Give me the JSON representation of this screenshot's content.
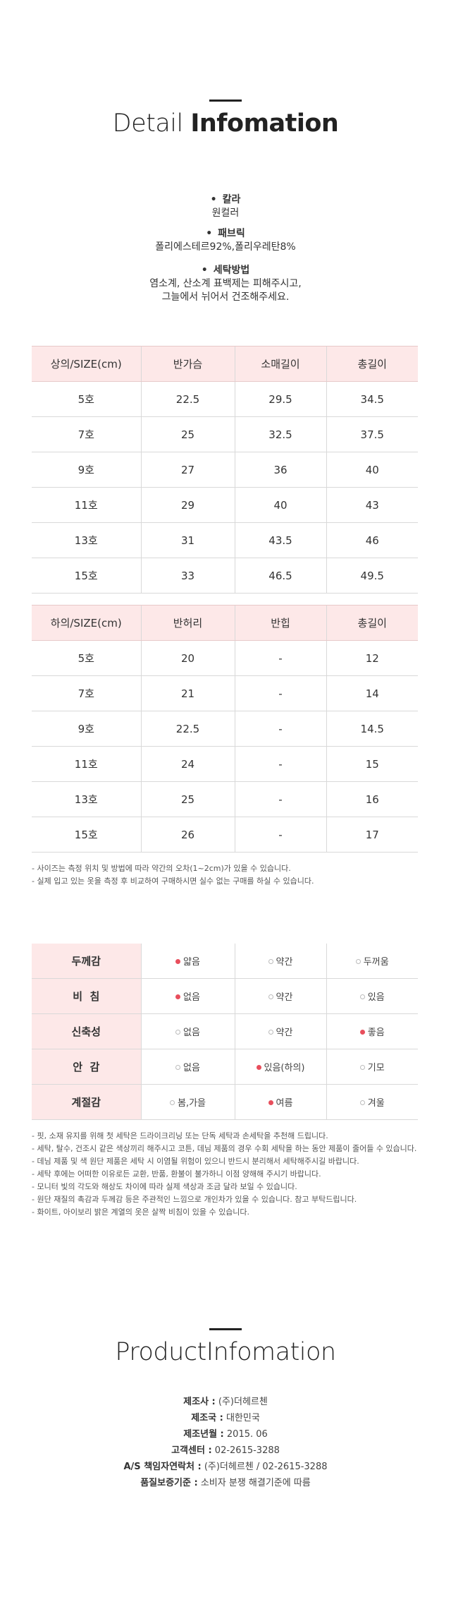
{
  "detail": {
    "title_light": "Detail ",
    "title_bold": "Infomation",
    "items": [
      {
        "head": "칼라",
        "body": [
          "원컬러"
        ]
      },
      {
        "head": "패브릭",
        "body": [
          "폴리에스테르92%,폴리우레탄8%"
        ]
      },
      {
        "head": "세탁방법",
        "body": [
          "염소계, 산소계 표백제는 피해주시고,",
          "그늘에서 뉘어서 건조해주세요."
        ]
      }
    ]
  },
  "top_table": {
    "headers": [
      "상의/SIZE(cm)",
      "반가슴",
      "소매길이",
      "총길이"
    ],
    "rows": [
      [
        "5호",
        "22.5",
        "29.5",
        "34.5"
      ],
      [
        "7호",
        "25",
        "32.5",
        "37.5"
      ],
      [
        "9호",
        "27",
        "36",
        "40"
      ],
      [
        "11호",
        "29",
        "40",
        "43"
      ],
      [
        "13호",
        "31",
        "43.5",
        "46"
      ],
      [
        "15호",
        "33",
        "46.5",
        "49.5"
      ]
    ]
  },
  "bottom_table": {
    "headers": [
      "하의/SIZE(cm)",
      "반허리",
      "반힙",
      "총길이"
    ],
    "rows": [
      [
        "5호",
        "20",
        "-",
        "12"
      ],
      [
        "7호",
        "21",
        "-",
        "14"
      ],
      [
        "9호",
        "22.5",
        "-",
        "14.5"
      ],
      [
        "11호",
        "24",
        "-",
        "15"
      ],
      [
        "13호",
        "25",
        "-",
        "16"
      ],
      [
        "15호",
        "26",
        "-",
        "17"
      ]
    ]
  },
  "size_notes": [
    "- 사이즈는 측정 위치 및 방법에 따라 약간의 오차(1~2cm)가 있을 수 있습니다.",
    "- 실제 입고 있는 옷을 측정 후 비교하여 구매하시면 실수 없는 구매를 하실 수 있습니다."
  ],
  "feel_table": {
    "rows": [
      {
        "label": "두께감",
        "options": [
          "얇음",
          "약간",
          "두꺼움"
        ],
        "selected": 0
      },
      {
        "label": "비  침",
        "options": [
          "없음",
          "약간",
          "있음"
        ],
        "selected": 0
      },
      {
        "label": "신축성",
        "options": [
          "없음",
          "약간",
          "좋음"
        ],
        "selected": 2
      },
      {
        "label": "안  감",
        "options": [
          "없음",
          "있음(하의)",
          "기모"
        ],
        "selected": 1
      },
      {
        "label": "계절감",
        "options": [
          "봄,가을",
          "여름",
          "겨울"
        ],
        "selected": 1
      }
    ]
  },
  "care_notes": [
    "- 핏, 소재 유지를 위해 첫 세탁은 드라이크리닝 또는 단독 세탁과 손세탁을 추천해 드립니다.",
    "- 세탁, 탈수, 건조시 같은 색상끼리 해주시고 코튼, 데님 제품의 경우 수회 세탁을 하는 동안 제품이 줄어들 수 있습니다.",
    "- 데님 제품 및 색 원단 제품은 세탁 시 이염될 위험이 있으니 반드시 분리해서 세탁해주시길 바랍니다.",
    "- 세탁 후에는 어떠한 이유로든 교환, 반품, 환불이 불가하니 이점 양해해 주시기 바랍니다.",
    "- 모니터 빛의 각도와 해상도 차이에 따라 실제 색상과 조금 달라 보일 수 있습니다.",
    "- 원단 재질의 촉감과 두께감 등은 주관적인 느낌으로 개인차가 있을 수 있습니다. 참고 부탁드립니다.",
    "- 화이트, 아이보리 밝은 계열의 옷은 살짝 비침이 있을 수 있습니다."
  ],
  "product": {
    "title": "ProductInfomation",
    "rows": [
      {
        "label": "제조사 :",
        "value": " (주)더헤르첸"
      },
      {
        "label": "제조국 :",
        "value": " 대한민국"
      },
      {
        "label": "제조년월 :",
        "value": " 2015. 06"
      },
      {
        "label": "고객센터 :",
        "value": " 02-2615-3288"
      },
      {
        "label": "A/S 책임자연락처 :",
        "value": " (주)더헤르첸 / 02-2615-3288"
      },
      {
        "label": "품질보증기준 :",
        "value": " 소비자 분쟁 해결기준에 따름"
      }
    ]
  },
  "colors": {
    "accent": "#e84e5c",
    "header_bg": "#fde8e8"
  }
}
